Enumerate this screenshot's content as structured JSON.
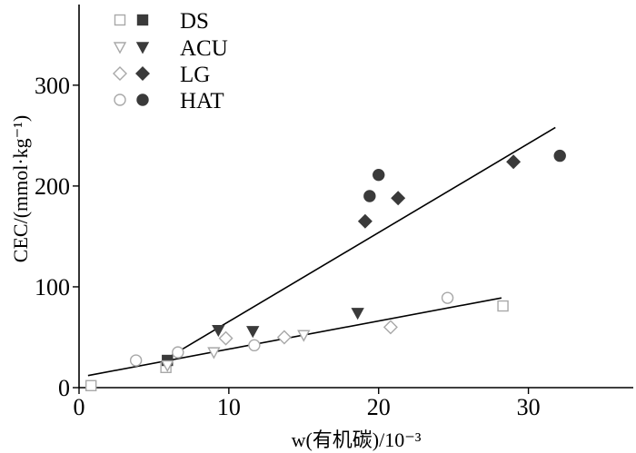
{
  "chart_data": {
    "type": "scatter",
    "xlabel": "w(有机碳)/10⁻³",
    "ylabel": "CEC/(mmol·kg⁻¹)",
    "xlim": [
      0,
      37
    ],
    "ylim": [
      0,
      380
    ],
    "x_ticks": [
      0,
      10,
      20,
      30
    ],
    "y_ticks": [
      0,
      100,
      200,
      300
    ],
    "grid": false,
    "legend_position": "top-left",
    "series": [
      {
        "name": "DS",
        "marker": "square",
        "open_points": [
          [
            0.8,
            2
          ],
          [
            5.8,
            20
          ],
          [
            28.3,
            81
          ]
        ],
        "filled_points": [
          [
            5.9,
            27
          ]
        ]
      },
      {
        "name": "ACU",
        "marker": "triangle-down",
        "open_points": [
          [
            5.9,
            22
          ],
          [
            9,
            35
          ],
          [
            15,
            52
          ]
        ],
        "filled_points": [
          [
            9.3,
            57
          ],
          [
            11.6,
            56
          ],
          [
            18.6,
            74
          ]
        ]
      },
      {
        "name": "LG",
        "marker": "diamond",
        "open_points": [
          [
            9.8,
            49
          ],
          [
            13.7,
            50
          ],
          [
            20.8,
            60
          ]
        ],
        "filled_points": [
          [
            19.1,
            165
          ],
          [
            21.3,
            188
          ],
          [
            29,
            224
          ]
        ]
      },
      {
        "name": "HAT",
        "marker": "circle",
        "open_points": [
          [
            3.8,
            27
          ],
          [
            6.6,
            35
          ],
          [
            11.7,
            42
          ],
          [
            24.6,
            89
          ]
        ],
        "filled_points": [
          [
            19.4,
            190
          ],
          [
            20,
            211
          ],
          [
            32.1,
            230
          ]
        ]
      }
    ],
    "trend_lines": [
      {
        "from": [
          0.6,
          12
        ],
        "to": [
          28.2,
          89
        ]
      },
      {
        "from": [
          6.2,
          32
        ],
        "to": [
          31.8,
          258
        ]
      }
    ],
    "colors": {
      "open": "#a8a8a8",
      "filled": "#3a3a3a",
      "axis": "#000000",
      "line": "#000000"
    }
  }
}
